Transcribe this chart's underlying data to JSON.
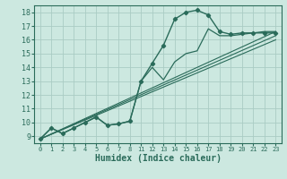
{
  "xlabel": "Humidex (Indice chaleur)",
  "background_color": "#cce8e0",
  "grid_color": "#aaccc4",
  "line_color": "#2a6b5a",
  "axis_color": "#2a6b5a",
  "ylim": [
    8.5,
    18.5
  ],
  "yticks": [
    9,
    10,
    11,
    12,
    13,
    14,
    15,
    16,
    17,
    18
  ],
  "xtick_labels": [
    "0",
    "1",
    "2",
    "3",
    "4",
    "5",
    "6",
    "7",
    "8",
    "11",
    "12",
    "13",
    "14",
    "15",
    "16",
    "17",
    "18",
    "19",
    "20",
    "21",
    "22",
    "23"
  ],
  "curve_with_markers": {
    "x": [
      0,
      1,
      2,
      3,
      4,
      5,
      6,
      7,
      8,
      11,
      12,
      13,
      14,
      15,
      16,
      17,
      18,
      19,
      20,
      21,
      22,
      23
    ],
    "y": [
      8.8,
      9.6,
      9.2,
      9.6,
      10.0,
      10.4,
      9.8,
      9.9,
      10.1,
      13.0,
      14.3,
      15.6,
      17.5,
      18.0,
      18.15,
      17.8,
      16.6,
      16.4,
      16.5,
      16.5,
      16.5,
      16.5
    ]
  },
  "curve2": {
    "x": [
      0,
      1,
      2,
      3,
      4,
      5,
      6,
      7,
      8,
      11,
      12,
      13,
      14,
      15,
      16,
      17,
      18,
      19,
      20,
      21,
      22,
      23
    ],
    "y": [
      8.8,
      9.6,
      9.2,
      9.6,
      10.0,
      10.4,
      9.8,
      9.9,
      10.1,
      13.0,
      14.0,
      13.1,
      14.4,
      15.0,
      15.2,
      16.8,
      16.3,
      16.3,
      16.4,
      16.5,
      16.6,
      16.6
    ]
  },
  "line1": {
    "x": [
      0,
      23
    ],
    "y": [
      8.8,
      16.6
    ]
  },
  "line2": {
    "x": [
      0,
      23
    ],
    "y": [
      8.8,
      16.3
    ]
  },
  "line3": {
    "x": [
      0,
      23
    ],
    "y": [
      8.8,
      16.0
    ]
  }
}
